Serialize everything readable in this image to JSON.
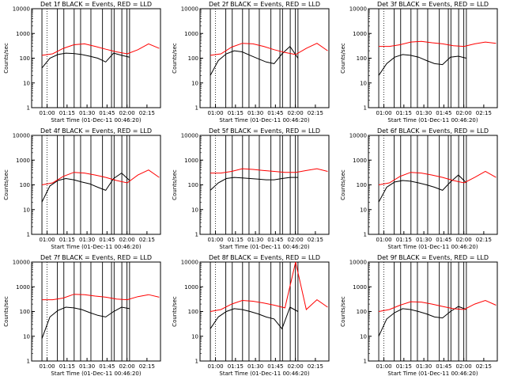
{
  "colors": {
    "events": "#000000",
    "lld": "#ff0000",
    "frame": "#000000",
    "background": "#ffffff"
  },
  "chart_data": [
    {
      "type": "line",
      "title": "Det 1f BLACK = Events, RED = LLD",
      "xlabel": "Start Time (01-Dec-11 00:46:20)",
      "ylabel": "Counts/sec",
      "yscale": "log",
      "ylim": [
        1,
        10000
      ],
      "x_ticks": [
        "01:00",
        "01:15",
        "01:30",
        "01:45",
        "02:00",
        "02:15"
      ],
      "y_ticks": [
        "1",
        "10",
        "100",
        "1000",
        "10000"
      ],
      "series": [
        {
          "color": "#000000",
          "values": [
            40,
            100,
            140,
            160,
            155,
            140,
            120,
            100,
            70,
            160,
            130,
            110
          ]
        },
        {
          "color": "#ff0000",
          "values": [
            130,
            150,
            250,
            350,
            380,
            300,
            230,
            180,
            150,
            220,
            380,
            250
          ]
        }
      ]
    },
    {
      "type": "line",
      "title": "Det 2f BLACK = Events, RED = LLD",
      "xlabel": "Start Time (01-Dec-11 00:46:20)",
      "ylabel": "Counts/sec",
      "yscale": "log",
      "ylim": [
        1,
        10000
      ],
      "x_ticks": [
        "01:00",
        "01:15",
        "01:30",
        "01:45",
        "02:00",
        "02:15"
      ],
      "y_ticks": [
        "1",
        "10",
        "100",
        "1000",
        "10000"
      ],
      "series": [
        {
          "color": "#000000",
          "values": [
            20,
            80,
            150,
            200,
            180,
            130,
            95,
            70,
            60,
            150,
            300,
            100
          ]
        },
        {
          "color": "#ff0000",
          "values": [
            130,
            150,
            280,
            400,
            380,
            300,
            220,
            170,
            140,
            250,
            400,
            200
          ]
        }
      ]
    },
    {
      "type": "line",
      "title": "Det 3f BLACK = Events, RED = LLD",
      "xlabel": "Start Time (01-Dec-11 00:46:20)",
      "ylabel": "Counts/sec",
      "yscale": "log",
      "ylim": [
        1,
        10000
      ],
      "x_ticks": [
        "01:00",
        "01:15",
        "01:30",
        "01:45",
        "02:00",
        "02:15"
      ],
      "y_ticks": [
        "1",
        "10",
        "100",
        "1000",
        "10000"
      ],
      "series": [
        {
          "color": "#000000",
          "values": [
            20,
            60,
            110,
            140,
            130,
            110,
            80,
            60,
            55,
            110,
            120,
            100
          ]
        },
        {
          "color": "#ff0000",
          "values": [
            300,
            300,
            350,
            450,
            480,
            420,
            380,
            320,
            300,
            380,
            450,
            400
          ]
        }
      ]
    },
    {
      "type": "line",
      "title": "Det 4f BLACK = Events, RED = LLD",
      "xlabel": "Start Time (01-Dec-11 00:46:20)",
      "ylabel": "Counts/sec",
      "yscale": "log",
      "ylim": [
        1,
        10000
      ],
      "x_ticks": [
        "01:00",
        "01:15",
        "01:30",
        "01:45",
        "02:00",
        "02:15"
      ],
      "y_ticks": [
        "1",
        "10",
        "100",
        "1000",
        "10000"
      ],
      "series": [
        {
          "color": "#000000",
          "values": [
            20,
            90,
            150,
            180,
            160,
            130,
            110,
            80,
            60,
            180,
            300,
            150
          ]
        },
        {
          "color": "#ff0000",
          "values": [
            100,
            120,
            220,
            320,
            300,
            250,
            200,
            150,
            120,
            250,
            400,
            200
          ]
        }
      ]
    },
    {
      "type": "line",
      "title": "Det 5f BLACK = Events, RED = LLD",
      "xlabel": "Start Time (01-Dec-11 00:46:20)",
      "ylabel": "Counts/sec",
      "yscale": "log",
      "ylim": [
        1,
        10000
      ],
      "x_ticks": [
        "01:00",
        "01:15",
        "01:30",
        "01:45",
        "02:00",
        "02:15"
      ],
      "y_ticks": [
        "1",
        "10",
        "100",
        "1000",
        "10000"
      ],
      "series": [
        {
          "color": "#000000",
          "values": [
            60,
            120,
            180,
            200,
            190,
            180,
            170,
            160,
            160,
            180,
            200,
            200
          ]
        },
        {
          "color": "#ff0000",
          "values": [
            300,
            300,
            350,
            450,
            420,
            380,
            350,
            320,
            320,
            380,
            450,
            350
          ]
        }
      ]
    },
    {
      "type": "line",
      "title": "Det 6f BLACK = Events, RED = LLD",
      "xlabel": "Start Time (01-Dec-11 00:46:20)",
      "ylabel": "Counts/sec",
      "yscale": "log",
      "ylim": [
        1,
        10000
      ],
      "x_ticks": [
        "01:00",
        "01:15",
        "01:30",
        "01:45",
        "02:00",
        "02:15"
      ],
      "y_ticks": [
        "1",
        "10",
        "100",
        "1000",
        "10000"
      ],
      "series": [
        {
          "color": "#000000",
          "values": [
            20,
            80,
            130,
            150,
            140,
            120,
            100,
            80,
            60,
            130,
            250,
            120
          ]
        },
        {
          "color": "#ff0000",
          "values": [
            100,
            120,
            220,
            320,
            300,
            250,
            200,
            150,
            120,
            200,
            350,
            200
          ]
        }
      ]
    },
    {
      "type": "line",
      "title": "Det 7f BLACK = Events, RED = LLD",
      "xlabel": "Start Time (01-Dec-11 00:46:20)",
      "ylabel": "Counts/sec",
      "yscale": "log",
      "ylim": [
        1,
        10000
      ],
      "x_ticks": [
        "01:00",
        "01:15",
        "01:30",
        "01:45",
        "02:00",
        "02:15"
      ],
      "y_ticks": [
        "1",
        "10",
        "100",
        "1000",
        "10000"
      ],
      "series": [
        {
          "color": "#000000",
          "values": [
            8,
            60,
            110,
            150,
            140,
            120,
            90,
            70,
            60,
            100,
            150,
            130
          ]
        },
        {
          "color": "#ff0000",
          "values": [
            300,
            300,
            350,
            500,
            480,
            420,
            380,
            320,
            300,
            400,
            480,
            380
          ]
        }
      ]
    },
    {
      "type": "line",
      "title": "Det 8f BLACK = Events, RED = LLD",
      "xlabel": "Start Time (01-Dec-11 00:46:20)",
      "ylabel": "Counts/sec",
      "yscale": "log",
      "ylim": [
        1,
        10000
      ],
      "x_ticks": [
        "01:00",
        "01:15",
        "01:30",
        "01:45",
        "02:00",
        "02:15"
      ],
      "y_ticks": [
        "1",
        "10",
        "100",
        "1000",
        "10000"
      ],
      "series": [
        {
          "color": "#000000",
          "values": [
            20,
            60,
            100,
            130,
            120,
            100,
            80,
            60,
            50,
            20,
            150,
            100
          ]
        },
        {
          "color": "#ff0000",
          "values": [
            100,
            120,
            200,
            280,
            260,
            220,
            180,
            140,
            10000,
            120,
            300,
            150
          ]
        }
      ]
    },
    {
      "type": "line",
      "title": "Det 9f BLACK = Events, RED = LLD",
      "xlabel": "Start Time (01-Dec-11 00:46:20)",
      "ylabel": "Counts/sec",
      "yscale": "log",
      "ylim": [
        1,
        10000
      ],
      "x_ticks": [
        "01:00",
        "01:15",
        "01:30",
        "01:45",
        "02:00",
        "02:15"
      ],
      "y_ticks": [
        "1",
        "10",
        "100",
        "1000",
        "10000"
      ],
      "series": [
        {
          "color": "#000000",
          "values": [
            10,
            50,
            90,
            130,
            120,
            100,
            80,
            60,
            55,
            100,
            160,
            120
          ]
        },
        {
          "color": "#ff0000",
          "values": [
            100,
            120,
            180,
            250,
            240,
            200,
            160,
            130,
            120,
            200,
            280,
            180
          ]
        }
      ]
    }
  ]
}
